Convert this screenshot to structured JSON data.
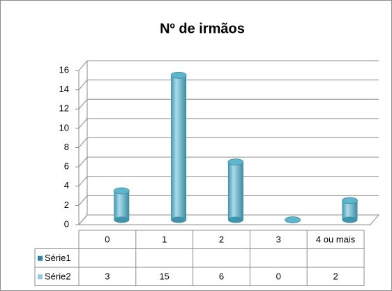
{
  "chart_data": {
    "type": "bar",
    "title": "Nº de irmãos",
    "categories": [
      "0",
      "1",
      "2",
      "3",
      "4 ou mais"
    ],
    "series": [
      {
        "name": "Série1",
        "color": "#31859c",
        "values": [
          null,
          null,
          null,
          null,
          null
        ]
      },
      {
        "name": "Série2",
        "color": "#93cddd",
        "values": [
          3,
          15,
          6,
          0,
          2
        ]
      }
    ],
    "ylim": [
      0,
      16
    ],
    "yticks": [
      0,
      2,
      4,
      6,
      8,
      10,
      12,
      14,
      16
    ],
    "grid": true
  }
}
